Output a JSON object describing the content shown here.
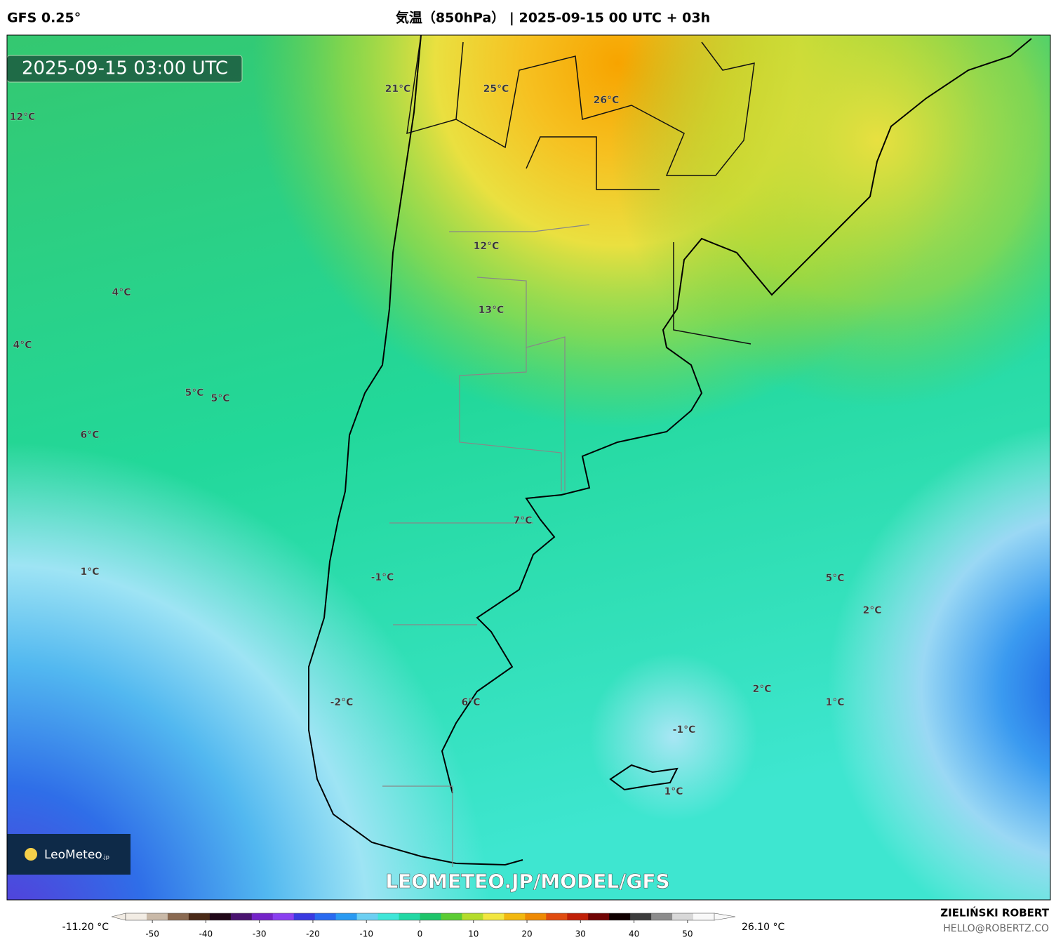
{
  "header": {
    "model": "GFS 0.25°",
    "title": "気温（850hPa） | 2025-09-15 00 UTC + 03h"
  },
  "map": {
    "valid_time": "2025-09-15 03:00 UTC",
    "labels": [
      "21°C",
      "25°C",
      "26°C",
      "12°C",
      "12°C",
      "4°C",
      "13°C",
      "4°C",
      "5°C",
      "5°C",
      "6°C",
      "7°C",
      "1°C",
      "-1°C",
      "5°C",
      "2°C",
      "2°C",
      "1°C",
      "-2°C",
      "6°C",
      "-1°C",
      "1°C"
    ],
    "watermark": "LEOMETEO.JP/MODEL/GFS",
    "logo": {
      "name": "LeoMeteo",
      "suffix": ".jp"
    }
  },
  "colorbar": {
    "min_label": "-11.20 °C",
    "max_label": "26.10 °C",
    "lim": [
      -55,
      55
    ],
    "ticks": [
      -50,
      -40,
      -30,
      -20,
      -10,
      0,
      10,
      20,
      30,
      40,
      50
    ],
    "colors": [
      "#f2ece4",
      "#c9b9a8",
      "#8a6a52",
      "#4a2a18",
      "#200818",
      "#4a1470",
      "#7424c8",
      "#8a40f0",
      "#3a3ae0",
      "#2a6af0",
      "#2a9af2",
      "#6ccff2",
      "#3fe6d8",
      "#22d8a4",
      "#1ec46a",
      "#5ccc34",
      "#b4dc2c",
      "#f2e640",
      "#f2b810",
      "#ee8a04",
      "#e04c10",
      "#c02008",
      "#700404",
      "#100000",
      "#3c3c3c",
      "#8c8c8c",
      "#d8d8d8",
      "#f8f8f8"
    ]
  },
  "footer": {
    "author": "ZIELIŃSKI ROBERT",
    "email": "HELLO@ROBERTZ.CO"
  }
}
